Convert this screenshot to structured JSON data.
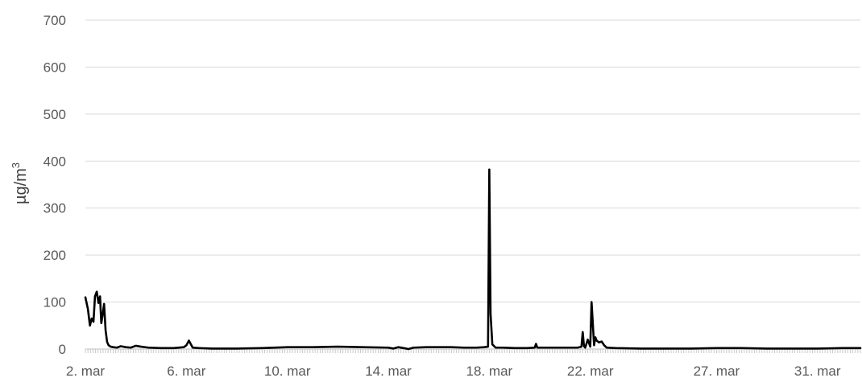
{
  "chart_data": {
    "type": "line",
    "title": "",
    "xlabel": "",
    "ylabel": "µg/m",
    "ylabel_superscript": "3",
    "ylim": [
      0,
      700
    ],
    "yticks": [
      0,
      100,
      200,
      300,
      400,
      500,
      600,
      700
    ],
    "xlim": [
      2,
      32.7
    ],
    "xtick_labels": [
      "2. mar",
      "6. mar",
      "10. mar",
      "14. mar",
      "18. mar",
      "22. mar",
      "27. mar",
      "31. mar"
    ],
    "xtick_days": [
      2,
      6,
      10,
      14,
      18,
      22,
      27,
      31
    ],
    "grid": "horizontal",
    "line_color": "#000000",
    "grid_color": "#d9d9d9",
    "series": [
      {
        "x": [
          2.0,
          2.1,
          2.18,
          2.25,
          2.32,
          2.38,
          2.45,
          2.52,
          2.58,
          2.63,
          2.68,
          2.74,
          2.8,
          2.86,
          2.92,
          3.0,
          3.1,
          3.25,
          3.4,
          3.6,
          3.8,
          4.0,
          4.2,
          4.5,
          5.0,
          5.5,
          5.9,
          6.0,
          6.1,
          6.25,
          6.5,
          7.0,
          8.0,
          9.0,
          10.0,
          11.0,
          12.0,
          13.0,
          14.0,
          14.2,
          14.4,
          14.6,
          14.8,
          15.0,
          15.5,
          16.0,
          16.5,
          17.0,
          17.5,
          17.8,
          17.95,
          18.0,
          18.05,
          18.12,
          18.25,
          18.5,
          19.0,
          19.5,
          19.8,
          19.85,
          19.9,
          20.0,
          20.5,
          21.0,
          21.5,
          21.65,
          21.7,
          21.75,
          21.8,
          21.9,
          22.0,
          22.05,
          22.1,
          22.15,
          22.2,
          22.25,
          22.35,
          22.45,
          22.55,
          22.65,
          23.0,
          24.0,
          25.0,
          26.0,
          27.0,
          28.0,
          29.0,
          30.0,
          31.0,
          32.0,
          32.7
        ],
        "y": [
          110,
          85,
          50,
          65,
          58,
          112,
          122,
          98,
          112,
          55,
          72,
          96,
          40,
          15,
          8,
          5,
          4,
          3,
          6,
          4,
          3,
          7,
          5,
          3,
          2,
          2,
          4,
          8,
          18,
          3,
          2,
          1,
          1,
          2,
          4,
          4,
          5,
          4,
          3,
          1,
          4,
          2,
          0,
          3,
          4,
          4,
          4,
          3,
          3,
          4,
          5,
          382,
          75,
          10,
          3,
          3,
          2,
          2,
          3,
          11,
          3,
          3,
          3,
          3,
          3,
          5,
          36,
          6,
          3,
          20,
          5,
          100,
          55,
          8,
          25,
          18,
          14,
          16,
          8,
          3,
          2,
          1,
          1,
          1,
          2,
          2,
          1,
          1,
          1,
          2,
          2
        ]
      }
    ]
  }
}
